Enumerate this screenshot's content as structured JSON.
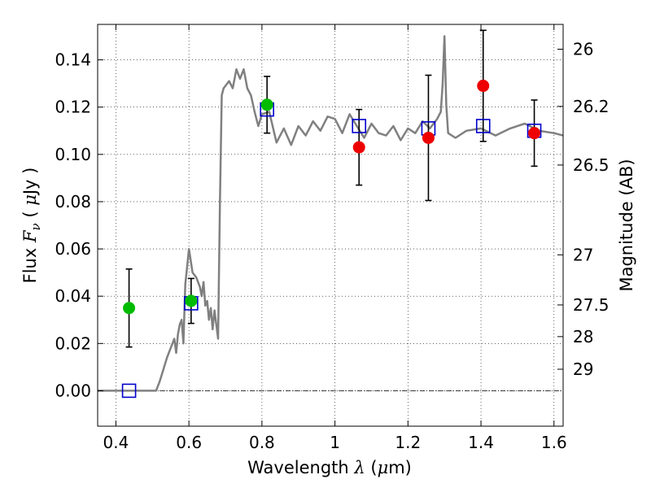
{
  "chart_data": {
    "type": "scatter",
    "xlabel": {
      "prefix": "Wavelength  ",
      "symbol": "λ",
      "unit_open": " (",
      "unit_symbol": "μ",
      "unit_rest": "m)"
    },
    "ylabel": {
      "prefix": "Flux  ",
      "symbol": "F",
      "sub": "ν",
      "unit_open": "  ( ",
      "unit_symbol": "μ",
      "unit_rest": "Jy )"
    },
    "y2label": "Magnitude (AB)",
    "xlim": [
      0.35,
      1.625
    ],
    "ylim": [
      -0.015,
      0.155
    ],
    "xticks": [
      {
        "v": 0.4,
        "label": "0.4"
      },
      {
        "v": 0.6,
        "label": "0.6"
      },
      {
        "v": 0.8,
        "label": "0.8"
      },
      {
        "v": 1.0,
        "label": "1"
      },
      {
        "v": 1.2,
        "label": "1.2"
      },
      {
        "v": 1.4,
        "label": "1.4"
      },
      {
        "v": 1.6,
        "label": "1.6"
      }
    ],
    "yticks": [
      {
        "v": 0.0,
        "label": "0.00"
      },
      {
        "v": 0.02,
        "label": "0.02"
      },
      {
        "v": 0.04,
        "label": "0.04"
      },
      {
        "v": 0.06,
        "label": "0.06"
      },
      {
        "v": 0.08,
        "label": "0.08"
      },
      {
        "v": 0.1,
        "label": "0.10"
      },
      {
        "v": 0.12,
        "label": "0.12"
      },
      {
        "v": 0.14,
        "label": "0.14"
      }
    ],
    "magnitude_ticks": [
      {
        "v": 0.1445,
        "label": "26"
      },
      {
        "v": 0.1203,
        "label": "26.2"
      },
      {
        "v": 0.0955,
        "label": "26.5"
      },
      {
        "v": 0.0575,
        "label": "27"
      },
      {
        "v": 0.0363,
        "label": "27.5"
      },
      {
        "v": 0.0229,
        "label": "28"
      },
      {
        "v": 0.0091,
        "label": "29"
      }
    ],
    "grid": true,
    "zero_line": true,
    "colors": {
      "model": "#808080",
      "model_points": "#0000cc",
      "green": "#00bb00",
      "red": "#ee0000",
      "errorbars": "#000000"
    },
    "model_spectrum": {
      "name": "",
      "x": [
        0.35,
        0.51,
        0.52,
        0.53,
        0.54,
        0.55,
        0.56,
        0.565,
        0.57,
        0.575,
        0.58,
        0.585,
        0.59,
        0.6,
        0.61,
        0.62,
        0.63,
        0.635,
        0.64,
        0.645,
        0.65,
        0.655,
        0.66,
        0.665,
        0.67,
        0.675,
        0.68,
        0.685,
        0.69,
        0.695,
        0.7,
        0.71,
        0.72,
        0.73,
        0.74,
        0.75,
        0.76,
        0.77,
        0.78,
        0.79,
        0.8,
        0.82,
        0.84,
        0.86,
        0.88,
        0.9,
        0.92,
        0.94,
        0.96,
        0.98,
        1.0,
        1.02,
        1.04,
        1.06,
        1.08,
        1.1,
        1.12,
        1.14,
        1.16,
        1.18,
        1.2,
        1.22,
        1.24,
        1.26,
        1.28,
        1.29,
        1.295,
        1.3,
        1.305,
        1.31,
        1.33,
        1.36,
        1.4,
        1.44,
        1.48,
        1.52,
        1.56,
        1.6,
        1.625
      ],
      "y": [
        0.0,
        0.0,
        0.004,
        0.009,
        0.014,
        0.018,
        0.022,
        0.016,
        0.024,
        0.028,
        0.03,
        0.02,
        0.045,
        0.06,
        0.05,
        0.048,
        0.044,
        0.04,
        0.046,
        0.036,
        0.038,
        0.03,
        0.035,
        0.026,
        0.034,
        0.028,
        0.022,
        0.08,
        0.125,
        0.128,
        0.129,
        0.131,
        0.128,
        0.136,
        0.132,
        0.136,
        0.128,
        0.125,
        0.118,
        0.112,
        0.117,
        0.118,
        0.105,
        0.111,
        0.104,
        0.112,
        0.108,
        0.114,
        0.11,
        0.116,
        0.115,
        0.109,
        0.117,
        0.112,
        0.107,
        0.113,
        0.109,
        0.108,
        0.112,
        0.106,
        0.111,
        0.109,
        0.114,
        0.111,
        0.115,
        0.118,
        0.13,
        0.15,
        0.121,
        0.109,
        0.107,
        0.11,
        0.111,
        0.108,
        0.111,
        0.113,
        0.11,
        0.109,
        0.108
      ]
    },
    "model_points": {
      "name": "",
      "x": [
        0.436,
        0.606,
        0.814,
        1.066,
        1.256,
        1.406,
        1.546
      ],
      "y": [
        0.0,
        0.037,
        0.119,
        0.112,
        0.111,
        0.112,
        0.11
      ]
    },
    "observed_green": {
      "name": "",
      "x": [
        0.436,
        0.606,
        0.814
      ],
      "y": [
        0.035,
        0.038,
        0.121
      ],
      "yerr": [
        0.0165,
        0.0095,
        0.012
      ]
    },
    "observed_red": {
      "name": "",
      "x": [
        1.066,
        1.256,
        1.406,
        1.546
      ],
      "y": [
        0.103,
        0.107,
        0.129,
        0.109
      ],
      "yerr": [
        0.016,
        0.0265,
        0.0235,
        0.014
      ]
    }
  }
}
